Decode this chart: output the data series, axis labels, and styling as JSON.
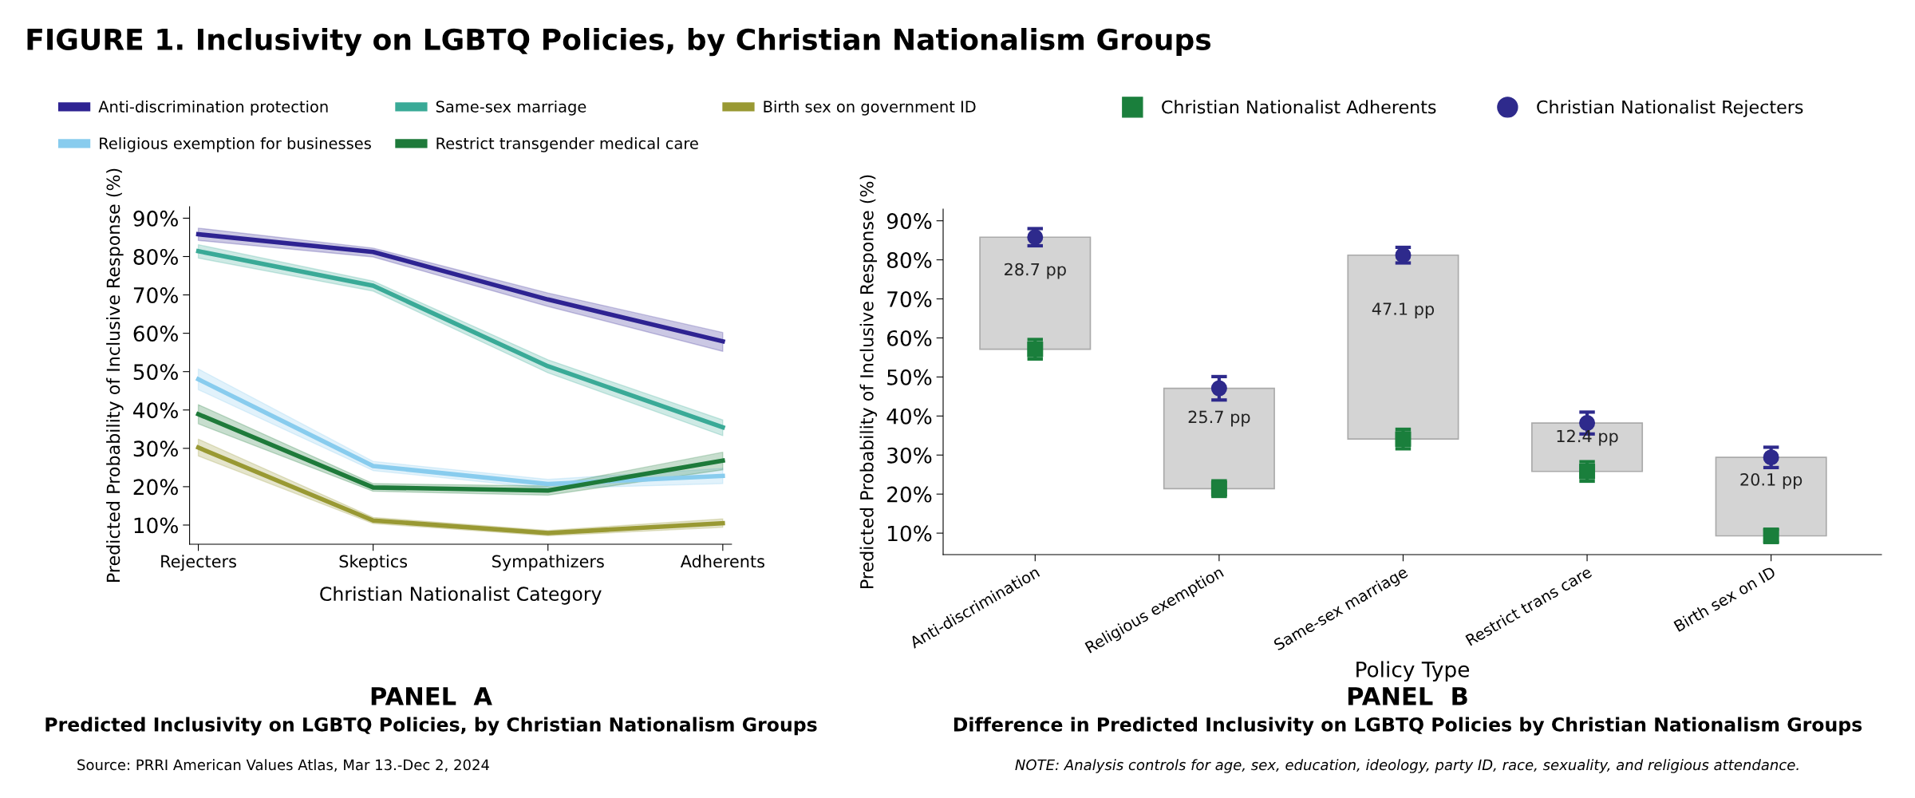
{
  "chart_data": [
    {
      "type": "line",
      "title": "PANEL  A",
      "subtitle": "Predicted Inclusivity on LGBTQ Policies, by Christian Nationalism Groups",
      "xlabel": "Christian Nationalist Category",
      "ylabel": "Predicted Probability of Inclusive Response (%)",
      "annotations": [
        "FIGURE 1. Inclusivity on LGBTQ Policies, by Christian Nationalism Groups",
        "Source: PRRI American Values Atlas, Mar 13.-Dec 2, 2024"
      ],
      "categories": [
        "Rejecters",
        "Skeptics",
        "Sympathizers",
        "Adherents"
      ],
      "series": [
        {
          "name": "Anti-discrimination protection",
          "color": "#2e2392",
          "values": [
            85.8,
            81.2,
            68.8,
            57.9
          ],
          "lower": [
            84.2,
            79.9,
            67.0,
            55.3
          ],
          "upper": [
            87.4,
            82.2,
            70.5,
            60.2
          ]
        },
        {
          "name": "Religious exemption for businesses",
          "color": "#88ccee",
          "values": [
            48.0,
            25.4,
            20.7,
            22.8
          ],
          "lower": [
            45.3,
            24.2,
            19.5,
            20.8
          ],
          "upper": [
            50.7,
            26.6,
            21.9,
            24.8
          ]
        },
        {
          "name": "Same-sex marriage",
          "color": "#3aaa97",
          "values": [
            81.4,
            72.4,
            51.4,
            35.5
          ],
          "lower": [
            79.6,
            71.0,
            49.7,
            33.3
          ],
          "upper": [
            83.1,
            73.6,
            53.1,
            37.4
          ]
        },
        {
          "name": "Restrict transgender medical care",
          "color": "#1e7a3a",
          "values": [
            38.9,
            19.8,
            19.0,
            26.8
          ],
          "lower": [
            36.4,
            18.8,
            17.8,
            24.4
          ],
          "upper": [
            41.4,
            20.8,
            20.2,
            29.0
          ]
        },
        {
          "name": "Birth sex on government ID",
          "color": "#999933",
          "values": [
            30.2,
            11.2,
            7.9,
            10.5
          ],
          "lower": [
            28.0,
            10.4,
            7.2,
            9.4
          ],
          "upper": [
            32.4,
            12.0,
            8.6,
            11.6
          ]
        }
      ],
      "ylim": [
        5,
        93
      ],
      "yticks": [
        {
          "value": 10,
          "label": "10%"
        },
        {
          "value": 20,
          "label": "20%"
        },
        {
          "value": 30,
          "label": "30%"
        },
        {
          "value": 40,
          "label": "40%"
        },
        {
          "value": 50,
          "label": "50%"
        },
        {
          "value": 60,
          "label": "60%"
        },
        {
          "value": 70,
          "label": "70%"
        },
        {
          "value": 80,
          "label": "80%"
        },
        {
          "value": 90,
          "label": "90%"
        }
      ],
      "grid": false,
      "legend": "top",
      "marker": "none",
      "line_style": "solid"
    },
    {
      "type": "bar",
      "title": "PANEL  B",
      "subtitle": "Difference in Predicted Inclusivity on LGBTQ Policies by Christian Nationalism Groups",
      "xlabel": "Policy Type",
      "ylabel": "Predicted Probability of Inclusive Response (%)",
      "annotations": [
        "NOTE: Analysis controls for age, sex, education, ideology, party ID, race, sexuality, and religious attendance."
      ],
      "categories": [
        "Anti-discrimination",
        "Religious exemption",
        "Same-sex marriage",
        "Restrict trans care",
        "Birth sex on ID"
      ],
      "series": [
        {
          "type": "bar",
          "color": "#d4d4d4",
          "values": [
            28.7,
            25.7,
            47.1,
            12.4,
            20.1
          ],
          "base": [
            57.1,
            21.4,
            34.1,
            25.8,
            9.3
          ],
          "value_labels": [
            "28.7 pp",
            "25.7 pp",
            "47.1 pp",
            "12.4 pp",
            "20.1 pp"
          ]
        },
        {
          "type": "scatter",
          "name": "Christian Nationalist Adherents",
          "color": "#1a7f3c",
          "marker": "square",
          "values": [
            57.1,
            21.4,
            34.1,
            25.8,
            9.3
          ],
          "errors": [
            2.5,
            2.0,
            2.5,
            2.5,
            1.7
          ]
        },
        {
          "type": "scatter",
          "name": "Christian Nationalist Rejecters",
          "color": "#2e2a8c",
          "marker": "circle",
          "values": [
            85.8,
            47.1,
            81.2,
            38.2,
            29.4
          ],
          "errors": [
            2.2,
            3.0,
            2.0,
            2.8,
            2.6
          ]
        }
      ],
      "ylim": [
        4.5,
        93
      ],
      "yticks": [
        {
          "value": 10,
          "label": "10%"
        },
        {
          "value": 20,
          "label": "20%"
        },
        {
          "value": 30,
          "label": "30%"
        },
        {
          "value": 40,
          "label": "40%"
        },
        {
          "value": 50,
          "label": "50%"
        },
        {
          "value": 60,
          "label": "60%"
        },
        {
          "value": 70,
          "label": "70%"
        },
        {
          "value": 80,
          "label": "80%"
        },
        {
          "value": 90,
          "label": "90%"
        }
      ],
      "grid": false,
      "legend": "top"
    }
  ]
}
